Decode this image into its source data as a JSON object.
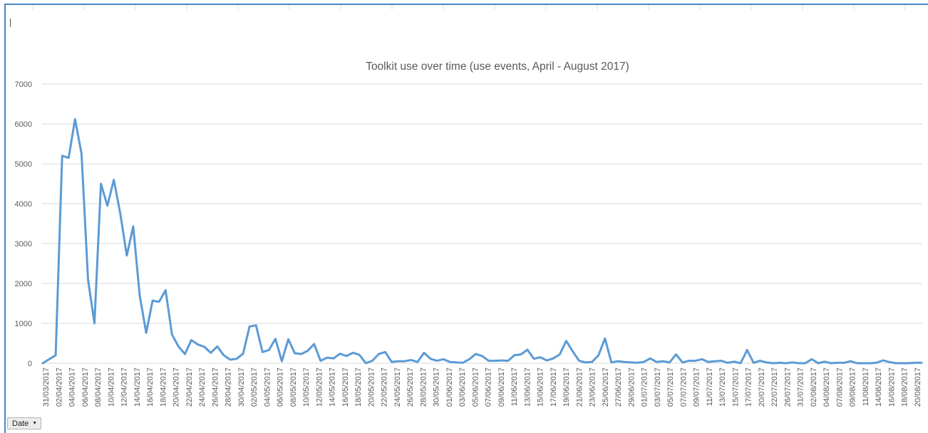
{
  "filter": {
    "label": "Date",
    "arrow_icon": "triangle-down-icon"
  },
  "chart_data": {
    "type": "line",
    "title": "Toolkit use over time (use events, April - August 2017)",
    "xlabel": "",
    "ylabel": "",
    "ylim": [
      0,
      7000
    ],
    "yticks": [
      0,
      1000,
      2000,
      3000,
      4000,
      5000,
      6000,
      7000
    ],
    "grid": true,
    "legend": "none",
    "line_color": "#5b9bd5",
    "grid_color": "#d9d9d9",
    "x_tick_labels": [
      "31/03/2017",
      "02/04/2017",
      "04/04/2017",
      "06/04/2017",
      "08/04/2017",
      "10/04/2017",
      "12/04/2017",
      "14/04/2017",
      "16/04/2017",
      "18/04/2017",
      "20/04/2017",
      "22/04/2017",
      "24/04/2017",
      "26/04/2017",
      "28/04/2017",
      "30/04/2017",
      "02/05/2017",
      "04/05/2017",
      "06/05/2017",
      "08/05/2017",
      "10/05/2017",
      "12/05/2017",
      "14/05/2017",
      "16/05/2017",
      "18/05/2017",
      "20/05/2017",
      "22/05/2017",
      "24/05/2017",
      "26/05/2017",
      "28/05/2017",
      "30/05/2017",
      "01/06/2017",
      "03/06/2017",
      "05/06/2017",
      "07/06/2017",
      "09/06/2017",
      "11/06/2017",
      "13/06/2017",
      "15/06/2017",
      "17/06/2017",
      "19/06/2017",
      "21/06/2017",
      "23/06/2017",
      "25/06/2017",
      "27/06/2017",
      "29/06/2017",
      "01/07/2017",
      "03/07/2017",
      "05/07/2017",
      "07/07/2017",
      "09/07/2017",
      "11/07/2017",
      "13/07/2017",
      "15/07/2017",
      "17/07/2017",
      "20/07/2017",
      "22/07/2017",
      "26/07/2017",
      "31/07/2017",
      "02/08/2017",
      "04/08/2017",
      "07/08/2017",
      "09/08/2017",
      "11/08/2017",
      "14/08/2017",
      "16/08/2017",
      "18/08/2017",
      "20/08/2017"
    ],
    "values": [
      0,
      100,
      200,
      5200,
      5150,
      6120,
      5250,
      2100,
      1000,
      4500,
      3950,
      4600,
      3750,
      2700,
      3430,
      1700,
      760,
      1570,
      1540,
      1830,
      720,
      420,
      230,
      580,
      470,
      410,
      260,
      420,
      200,
      90,
      110,
      240,
      920,
      950,
      280,
      330,
      610,
      50,
      600,
      250,
      230,
      310,
      480,
      60,
      140,
      120,
      240,
      180,
      260,
      210,
      0,
      60,
      230,
      280,
      30,
      50,
      50,
      80,
      30,
      260,
      110,
      60,
      100,
      30,
      20,
      10,
      100,
      230,
      180,
      60,
      60,
      70,
      60,
      200,
      220,
      340,
      110,
      150,
      70,
      120,
      220,
      560,
      300,
      60,
      20,
      30,
      200,
      620,
      20,
      50,
      30,
      20,
      10,
      30,
      120,
      30,
      50,
      20,
      220,
      20,
      60,
      60,
      100,
      30,
      50,
      60,
      10,
      40,
      0,
      330,
      10,
      60,
      20,
      0,
      10,
      0,
      20,
      0,
      0,
      100,
      0,
      40,
      0,
      10,
      10,
      50,
      0,
      0,
      0,
      10,
      70,
      30,
      0,
      0,
      0,
      10,
      10
    ]
  }
}
